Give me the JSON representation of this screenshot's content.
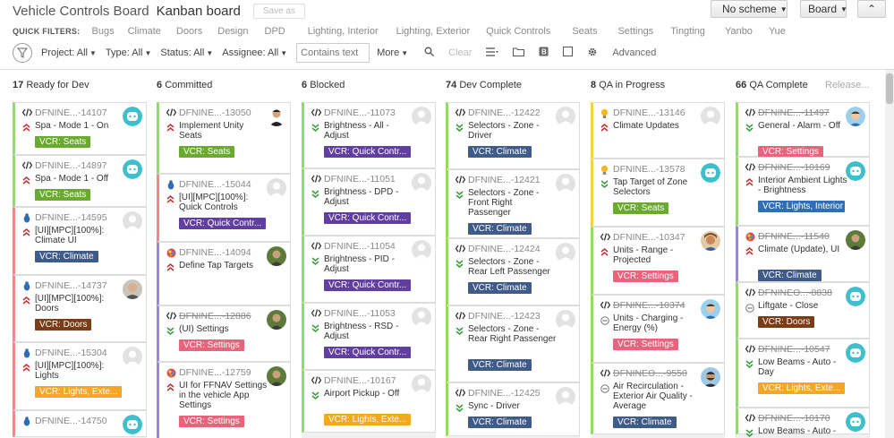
{
  "header": {
    "board_name": "Vehicle Controls Board",
    "view_name": "Kanban board",
    "save_as": "Save as",
    "scheme_button": "No scheme",
    "board_button": "Board",
    "collapse_button": "⌃"
  },
  "quick_filters": {
    "label": "QUICK FILTERS:",
    "items": [
      "Bugs",
      "Climate",
      "Doors",
      "Design",
      "DPD",
      "Lighting, Interior",
      "Lighting, Exterior",
      "Quick Controls",
      "Seats",
      "Settings",
      "Tingting",
      "Yanbo",
      "Yue"
    ]
  },
  "filters": {
    "project": "Project: All",
    "type": "Type: All",
    "status": "Status: All",
    "assignee": "Assignee: All",
    "contains_placeholder": "Contains text",
    "more": "More",
    "clear": "Clear",
    "advanced": "Advanced"
  },
  "colors": {
    "seats": "#6aaa2e",
    "climate": "#3e5b8a",
    "quick": "#613fa0",
    "settings": "#e8637b",
    "doors": "#7a3d17",
    "lights_ext": "#f5a623",
    "lights_int": "#2f6fb8",
    "lane_green": "#8fdc6a",
    "lane_red": "#ef8a8a",
    "lane_purple": "#9a86d8",
    "lane_blue": "#7ab4ef",
    "priority_red": "#c23030",
    "priority_green": "#3a9a3a"
  },
  "columns": [
    {
      "count": "17",
      "name": "Ready for Dev",
      "release": "",
      "cards": [
        {
          "type": "code",
          "key": "DFNINE...-14107",
          "title": "Spa - Mode 1 - On",
          "priority": "up",
          "tag": "VCR: Seats",
          "tag_color": "seats",
          "avatar": "bot",
          "lane": "green",
          "strike": false
        },
        {
          "type": "code",
          "key": "DFNINE...-14897",
          "title": "Spa - Mode 1 - Off",
          "priority": "up",
          "tag": "VCR: Seats",
          "tag_color": "seats",
          "avatar": "bot",
          "lane": "green",
          "strike": false
        },
        {
          "type": "bug",
          "key": "DFNINE...-14595",
          "title": "[UI][MPC][100%]: Climate UI",
          "priority": "up",
          "tag": "VCR: Climate",
          "tag_color": "climate",
          "avatar": "blank",
          "lane": "red",
          "strike": false
        },
        {
          "type": "bug",
          "key": "DFNINE...-14737",
          "title": "[UI][MPC][100%]: Doors",
          "priority": "up",
          "tag": "VCR: Doors",
          "tag_color": "doors",
          "avatar": "man",
          "lane": "red",
          "strike": false
        },
        {
          "type": "bug",
          "key": "DFNINE...-15304",
          "title": "[UI][MPC][100%]: Lights",
          "priority": "up",
          "tag": "VCR: Lights, Exte...",
          "tag_color": "lights_ext",
          "avatar": "blank",
          "lane": "red",
          "strike": false
        },
        {
          "type": "bug",
          "key": "DFNINE...-14750",
          "title": "",
          "priority": "",
          "tag": "",
          "tag_color": "",
          "avatar": "bot",
          "lane": "red",
          "strike": false
        }
      ]
    },
    {
      "count": "6",
      "name": "Committed",
      "release": "",
      "cards": [
        {
          "type": "code",
          "key": "DFNINE...-13050",
          "title": "Implement Unity Seats",
          "priority": "up",
          "tag": "VCR: Seats",
          "tag_color": "seats",
          "avatar": "man2",
          "lane": "green",
          "strike": false
        },
        {
          "type": "bug",
          "key": "DFNINE...-15044",
          "title": "[UI][MPC][100%]: Quick Controls",
          "priority": "up",
          "tag": "VCR: Quick Contr...",
          "tag_color": "quick",
          "avatar": "blank",
          "lane": "red",
          "strike": false
        },
        {
          "type": "design",
          "key": "DFNINE...-14094",
          "title": "Define Tap Targets",
          "priority": "up",
          "tag": "",
          "tag_color": "",
          "avatar": "man3",
          "lane": "purple",
          "strike": false
        },
        {
          "type": "code",
          "key": "DFNINE...-12886",
          "title": "(UI) Settings",
          "priority": "down",
          "tag": "VCR: Settings",
          "tag_color": "settings",
          "avatar": "man3",
          "lane": "purple",
          "strike": true
        },
        {
          "type": "design",
          "key": "DFNINE...-12759",
          "title": "UI for FFNAV Settings in the vehicle App Settings",
          "priority": "up",
          "tag": "VCR: Settings",
          "tag_color": "settings",
          "avatar": "man3",
          "lane": "purple",
          "strike": false
        }
      ]
    },
    {
      "count": "6",
      "name": "Blocked",
      "release": "",
      "cards": [
        {
          "type": "code",
          "key": "DFNINE...-11073",
          "title": "Brightness - All - Adjust",
          "priority": "down",
          "tag": "VCR: Quick Contr...",
          "tag_color": "quick",
          "avatar": "blank",
          "lane": "green",
          "strike": false
        },
        {
          "type": "code",
          "key": "DFNINE...-11051",
          "title": "Brightness - DPD - Adjust",
          "priority": "down",
          "tag": "VCR: Quick Contr...",
          "tag_color": "quick",
          "avatar": "blank",
          "lane": "green",
          "strike": false
        },
        {
          "type": "code",
          "key": "DFNINE...-11054",
          "title": "Brightness - PID - Adjust",
          "priority": "down",
          "tag": "VCR: Quick Contr...",
          "tag_color": "quick",
          "avatar": "blank",
          "lane": "green",
          "strike": false
        },
        {
          "type": "code",
          "key": "DFNINE...-11053",
          "title": "Brightness - RSD - Adjust",
          "priority": "down",
          "tag": "VCR: Quick Contr...",
          "tag_color": "quick",
          "avatar": "blank",
          "lane": "green",
          "strike": false
        },
        {
          "type": "code",
          "key": "DFNINE...-10167",
          "title": "Airport Pickup - Off",
          "priority": "down",
          "tag": "VCR: Lights, Exte...",
          "tag_color": "lights_ext",
          "avatar": "blank",
          "lane": "green",
          "strike": false
        }
      ]
    },
    {
      "count": "74",
      "name": "Dev Complete",
      "release": "",
      "cards": [
        {
          "type": "code",
          "key": "DFNINE...-12422",
          "title": "Selectors - Zone - Driver",
          "priority": "down",
          "tag": "VCR: Climate",
          "tag_color": "climate",
          "avatar": "blank",
          "lane": "green",
          "strike": false
        },
        {
          "type": "code",
          "key": "DFNINE...-12421",
          "title": "Selectors - Zone - Front Right Passenger",
          "priority": "down",
          "tag": "VCR: Climate",
          "tag_color": "climate",
          "avatar": "blank",
          "lane": "green",
          "strike": false
        },
        {
          "type": "code",
          "key": "DFNINE...-12424",
          "title": "Selectors - Zone - Rear Left Passenger",
          "priority": "down",
          "tag": "VCR: Climate",
          "tag_color": "climate",
          "avatar": "blank",
          "lane": "green",
          "strike": false
        },
        {
          "type": "code",
          "key": "DFNINE...-12423",
          "title": "Selectors - Zone - Rear Right Passenger",
          "priority": "down",
          "tag": "VCR: Climate",
          "tag_color": "climate",
          "avatar": "blank",
          "lane": "green",
          "strike": false
        },
        {
          "type": "code",
          "key": "DFNINE...-12425",
          "title": "Sync - Driver",
          "priority": "down",
          "tag": "VCR: Climate",
          "tag_color": "climate",
          "avatar": "blank",
          "lane": "green",
          "strike": false
        }
      ]
    },
    {
      "count": "8",
      "name": "QA in Progress",
      "release": "",
      "cards": [
        {
          "type": "idea",
          "key": "DFNINE...-13146",
          "title": "Climate Updates",
          "priority": "up",
          "tag": "",
          "tag_color": "",
          "avatar": "blank",
          "lane": "yellow",
          "strike": false
        },
        {
          "type": "idea",
          "key": "DFNINE...-13578",
          "title": "Tap Target of Zone Selectors",
          "priority": "down",
          "tag": "VCR: Seats",
          "tag_color": "seats",
          "avatar": "bot",
          "lane": "yellow",
          "strike": false
        },
        {
          "type": "code",
          "key": "DFNINE...-10347",
          "title": "Units - Range - Projected",
          "priority": "up",
          "tag": "VCR: Settings",
          "tag_color": "settings",
          "avatar": "man4",
          "lane": "green",
          "strike": false
        },
        {
          "type": "code",
          "key": "DFNINE...-10374",
          "title": "Units - Charging - Energy (%)",
          "priority": "minus",
          "tag": "VCR: Settings",
          "tag_color": "settings",
          "avatar": "man5",
          "lane": "green",
          "strike": true
        },
        {
          "type": "code",
          "key": "DFNINEO...-9550",
          "title": "Air Recirculation - Exterior Air Quality - Average",
          "priority": "minus",
          "tag": "VCR: Climate",
          "tag_color": "climate",
          "avatar": "man6",
          "lane": "green",
          "strike": true
        }
      ]
    },
    {
      "count": "66",
      "name": "QA Complete",
      "release": "Release...",
      "cards": [
        {
          "type": "code",
          "key": "DFNINE...-11497",
          "title": "General - Alarm - Off",
          "priority": "down",
          "tag": "VCR: Settings",
          "tag_color": "settings",
          "avatar": "man5",
          "lane": "green",
          "strike": true
        },
        {
          "type": "code",
          "key": "DFNINE...-10169",
          "title": "Interior Ambient Lights - Brightness",
          "priority": "up",
          "tag": "VCR: Lights, Interior",
          "tag_color": "lights_int",
          "avatar": "bot",
          "lane": "green",
          "strike": true
        },
        {
          "type": "design",
          "key": "DFNINE...-11540",
          "title": "Climate (Update), UI",
          "priority": "up",
          "tag": "VCR: Climate",
          "tag_color": "climate",
          "avatar": "man3",
          "lane": "purple",
          "strike": true
        },
        {
          "type": "code",
          "key": "DFNINEO...-8838",
          "title": "Liftgate - Close",
          "priority": "minus",
          "tag": "VCR: Doors",
          "tag_color": "doors",
          "avatar": "bot",
          "lane": "green",
          "strike": true
        },
        {
          "type": "code",
          "key": "DFNINE...-10547",
          "title": "Low Beams - Auto - Day",
          "priority": "down",
          "tag": "VCR: Lights, Exte...",
          "tag_color": "lights_ext",
          "avatar": "bot",
          "lane": "green",
          "strike": true
        },
        {
          "type": "code",
          "key": "DFNINE...-10170",
          "title": "Low Beams - Auto -",
          "priority": "down",
          "tag": "",
          "tag_color": "",
          "avatar": "bot",
          "lane": "green",
          "strike": true
        }
      ]
    }
  ]
}
